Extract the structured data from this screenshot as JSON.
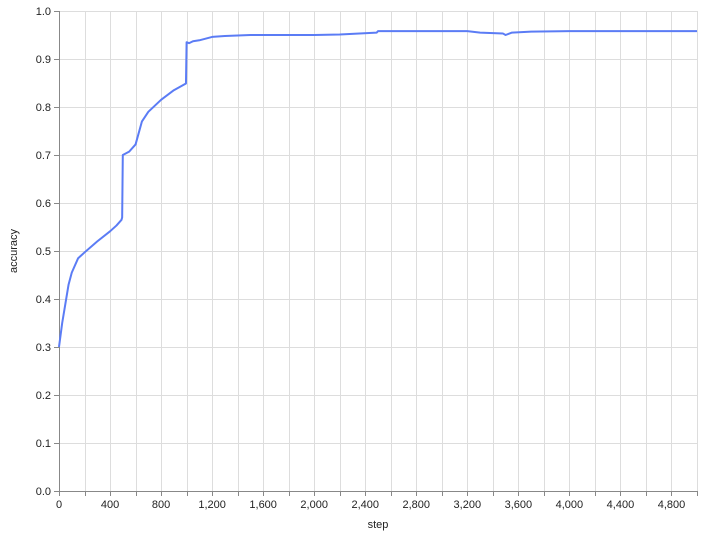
{
  "chart_data": {
    "type": "line",
    "xlabel": "step",
    "ylabel": "accuracy",
    "xlim": [
      0,
      5000
    ],
    "ylim": [
      0,
      1.0
    ],
    "x_ticks": [
      0,
      400,
      800,
      1200,
      1600,
      2000,
      2400,
      2800,
      3200,
      3600,
      4000,
      4400,
      4800
    ],
    "x_tick_labels": [
      "0",
      "400",
      "800",
      "1,200",
      "1,600",
      "2,000",
      "2,400",
      "2,800",
      "3,200",
      "3,600",
      "4,000",
      "4,400",
      "4,800"
    ],
    "y_ticks": [
      0,
      0.1,
      0.2,
      0.3,
      0.4,
      0.5,
      0.6,
      0.7,
      0.8,
      0.9,
      1.0
    ],
    "y_tick_labels": [
      "0.0",
      "0.1",
      "0.2",
      "0.3",
      "0.4",
      "0.5",
      "0.6",
      "0.7",
      "0.8",
      "0.9",
      "1.0"
    ],
    "grid": true,
    "series": [
      {
        "color": "#5b7cf5",
        "x": [
          0,
          25,
          50,
          75,
          100,
          150,
          200,
          300,
          400,
          450,
          490,
          495,
          500,
          550,
          600,
          650,
          700,
          800,
          900,
          995,
          1000,
          1020,
          1050,
          1100,
          1200,
          1300,
          1500,
          2000,
          2200,
          2490,
          2500,
          2600,
          3000,
          3200,
          3300,
          3480,
          3500,
          3550,
          3700,
          4000,
          4500,
          5000
        ],
        "y": [
          0.3,
          0.35,
          0.39,
          0.43,
          0.455,
          0.485,
          0.497,
          0.52,
          0.541,
          0.553,
          0.565,
          0.57,
          0.7,
          0.707,
          0.722,
          0.77,
          0.79,
          0.815,
          0.835,
          0.849,
          0.935,
          0.933,
          0.937,
          0.939,
          0.946,
          0.948,
          0.95,
          0.95,
          0.951,
          0.955,
          0.958,
          0.958,
          0.958,
          0.958,
          0.955,
          0.953,
          0.95,
          0.955,
          0.957,
          0.958,
          0.958,
          0.958
        ]
      }
    ]
  }
}
